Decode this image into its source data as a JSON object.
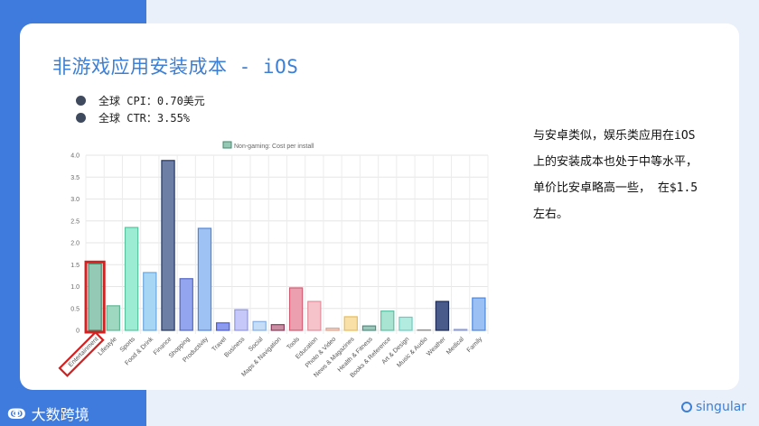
{
  "title": "非游戏应用安装成本 - iOS",
  "stats": [
    {
      "label": "全球 CPI：0.70美元"
    },
    {
      "label": "全球 CTR：3.55%"
    }
  ],
  "description": "与安卓类似，娱乐类应用在iOS 上的安装成本也处于中等水平，单价比安卓略高一些，  在$1.5左右。",
  "branding": {
    "left_logo": "大数跨境",
    "left_icon": "ↂ",
    "right_logo": "singular"
  },
  "colors": {
    "title": "#3b7fd6",
    "highlight": "#d32020",
    "strip": "#3f7bdc"
  },
  "chart_data": {
    "type": "bar",
    "legend": "Non-gaming: Cost per install",
    "legend_placement": "top-center",
    "grid": true,
    "ylim": [
      0,
      4.0
    ],
    "yticks": [
      "4.0",
      "3.5",
      "3.0",
      "2.5",
      "2.0",
      "1.5",
      "1.0",
      "0.5",
      "0"
    ],
    "categories": [
      "Entertainment",
      "Lifestyle",
      "Sports",
      "Food & Drink",
      "Finance",
      "Shopping",
      "Productivity",
      "Travel",
      "Business",
      "Social",
      "Maps & Navigation",
      "Tools",
      "Education",
      "Photo & Video",
      "News & Magazines",
      "Health & Fitness",
      "Books & Reference",
      "Art & Design",
      "Music & Audio",
      "Weather",
      "Medical",
      "Family"
    ],
    "values": [
      1.52,
      0.56,
      2.35,
      1.32,
      3.88,
      1.18,
      2.33,
      0.17,
      0.47,
      0.2,
      0.13,
      0.97,
      0.66,
      0.05,
      0.31,
      0.1,
      0.44,
      0.3,
      0.0,
      0.66,
      0.02,
      0.74
    ],
    "colors": [
      "#93c9b5",
      "#9ed8c1",
      "#9cebd3",
      "#a7d6f5",
      "#6e7fa6",
      "#93a5ef",
      "#9fc2f5",
      "#8d9bee",
      "#c5c8f9",
      "#c6ddf8",
      "#c98ea2",
      "#ec9fae",
      "#f6c3cb",
      "#f8d3c5",
      "#f8e0a6",
      "#9ac9bc",
      "#a9e3d2",
      "#b2ece1",
      "#cccccc",
      "#485b8b",
      "#d5dbf4",
      "#9bc0f3"
    ],
    "strokes": [
      "#3e8a6e",
      "#5eb895",
      "#57c49f",
      "#6ca7df",
      "#243764",
      "#5467c8",
      "#4f86dc",
      "#4a5be0",
      "#8f95ea",
      "#85aee6",
      "#8b3d5b",
      "#d05b72",
      "#e08e9c",
      "#e0a38c",
      "#ebbc54",
      "#4e8f80",
      "#5cc0a2",
      "#6bcbbd",
      "#999999",
      "#1b2b57",
      "#8e9cd6",
      "#4f86dc"
    ],
    "highlighted_category": "Entertainment"
  }
}
